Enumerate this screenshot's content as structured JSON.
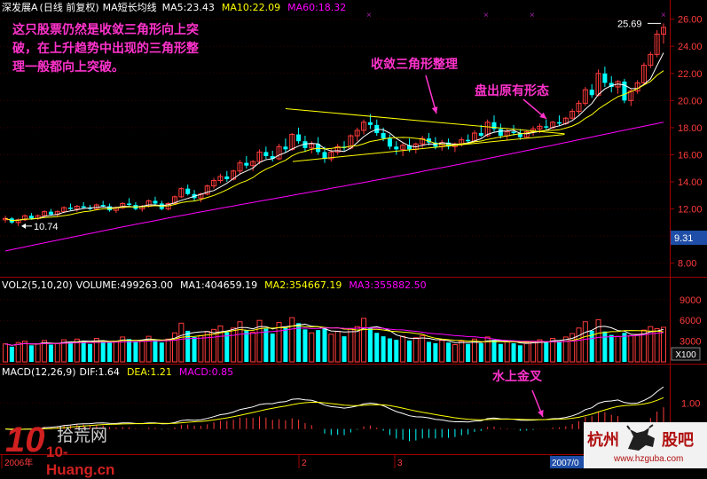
{
  "stock_name": "深发展A",
  "main_header": {
    "period": "(日线 前复权)",
    "indicator": "MA短长均线",
    "ma5": "MA5:23.43",
    "ma10": "MA10:22.09",
    "ma60": "MA60:18.32"
  },
  "vol_header": {
    "name": "VOL2(5,10,20)",
    "volume": "VOLUME:499263.00",
    "ma1": "MA1:404659.19",
    "ma2": "MA2:354667.19",
    "ma3": "MA3:355882.50"
  },
  "macd_header": {
    "name": "MACD(12,26,9)",
    "dif": "DIF:1.64",
    "dea": "DEA:1.21",
    "macd": "MACD:0.85"
  },
  "annotations": {
    "main_note": "这只股票仍然是收敛三角形向上突破，在上升趋势中出现的三角形整理一般都向上突破。",
    "triangle_label": "收敛三角形整理",
    "pattern_label": "盘出原有形态",
    "macd_label": "水上金叉"
  },
  "price_labels": {
    "high": "25.69",
    "low": "10.74",
    "current_tag": "9.31"
  },
  "price_axis": [
    "26.00",
    "24.00",
    "22.00",
    "20.00",
    "18.00",
    "16.00",
    "14.00",
    "12.00",
    "10.00",
    "8.00"
  ],
  "volume_axis": [
    "9000",
    "6000",
    "3000",
    "X100"
  ],
  "macd_axis": [
    "1.00"
  ],
  "time_axis": [
    "2006年",
    "2",
    "3",
    "4",
    "2007/0"
  ],
  "watermarks": {
    "left_logo": "10",
    "left_name": "拾荒网",
    "left_url": "10-Huang.cn",
    "right_name_a": "杭州",
    "right_name_b": "股吧",
    "right_url": "www.hzguba.com"
  },
  "colors": {
    "background": "#000000",
    "up_candle": "#ff3b3b",
    "down_candle": "#00ffff",
    "ma5": "#ffffff",
    "ma10": "#ffff00",
    "ma60": "#ff00ff",
    "axis_text": "#ff3b3b",
    "annotation": "#ff33cc"
  },
  "chart_data": {
    "type": "candlestick",
    "price_ylim": [
      7.0,
      26.5
    ],
    "candles_note": "approximate daily OHLC read from chart",
    "candles": [
      [
        11.2,
        11.5,
        11.0,
        11.3
      ],
      [
        11.3,
        11.4,
        10.9,
        11.0
      ],
      [
        11.0,
        11.3,
        10.74,
        11.2
      ],
      [
        11.2,
        11.6,
        11.1,
        11.5
      ],
      [
        11.5,
        11.7,
        11.2,
        11.3
      ],
      [
        11.3,
        11.6,
        11.2,
        11.5
      ],
      [
        11.5,
        11.9,
        11.4,
        11.8
      ],
      [
        11.8,
        12.0,
        11.5,
        11.6
      ],
      [
        11.6,
        11.9,
        11.4,
        11.8
      ],
      [
        11.8,
        12.2,
        11.7,
        12.1
      ],
      [
        12.1,
        12.4,
        11.9,
        12.0
      ],
      [
        12.0,
        12.3,
        11.8,
        12.2
      ],
      [
        12.2,
        12.5,
        12.0,
        12.1
      ],
      [
        12.1,
        12.3,
        11.9,
        12.0
      ],
      [
        12.0,
        12.4,
        11.9,
        12.3
      ],
      [
        12.3,
        12.6,
        12.1,
        12.2
      ],
      [
        12.2,
        12.4,
        11.8,
        11.9
      ],
      [
        11.9,
        12.2,
        11.7,
        12.1
      ],
      [
        12.1,
        12.5,
        12.0,
        12.4
      ],
      [
        12.4,
        12.8,
        12.2,
        12.3
      ],
      [
        12.3,
        12.5,
        11.9,
        12.0
      ],
      [
        12.0,
        12.3,
        11.8,
        12.2
      ],
      [
        12.2,
        12.7,
        12.1,
        12.6
      ],
      [
        12.6,
        12.9,
        12.3,
        12.4
      ],
      [
        12.4,
        12.6,
        11.9,
        12.0
      ],
      [
        12.0,
        12.5,
        11.9,
        12.4
      ],
      [
        12.4,
        13.0,
        12.3,
        12.9
      ],
      [
        12.9,
        13.6,
        12.8,
        13.5
      ],
      [
        13.5,
        13.8,
        13.0,
        13.1
      ],
      [
        13.1,
        13.4,
        12.6,
        12.8
      ],
      [
        12.8,
        13.2,
        12.5,
        13.1
      ],
      [
        13.1,
        13.8,
        13.0,
        13.7
      ],
      [
        13.7,
        14.3,
        13.5,
        14.1
      ],
      [
        14.1,
        14.6,
        13.9,
        14.4
      ],
      [
        14.4,
        14.8,
        14.0,
        14.2
      ],
      [
        14.2,
        14.9,
        14.1,
        14.8
      ],
      [
        14.8,
        15.6,
        14.6,
        15.4
      ],
      [
        15.4,
        15.9,
        15.0,
        15.2
      ],
      [
        15.2,
        15.6,
        14.8,
        15.5
      ],
      [
        15.5,
        16.4,
        15.3,
        16.2
      ],
      [
        16.2,
        16.6,
        15.7,
        15.9
      ],
      [
        15.9,
        16.3,
        15.5,
        15.7
      ],
      [
        15.7,
        16.8,
        15.6,
        16.6
      ],
      [
        16.6,
        17.2,
        16.2,
        16.4
      ],
      [
        16.4,
        17.6,
        16.3,
        17.5
      ],
      [
        17.5,
        18.0,
        16.8,
        17.0
      ],
      [
        17.0,
        17.4,
        16.2,
        16.5
      ],
      [
        16.5,
        17.0,
        16.1,
        16.8
      ],
      [
        16.8,
        17.3,
        16.0,
        16.2
      ],
      [
        16.2,
        16.6,
        15.4,
        15.7
      ],
      [
        15.7,
        16.4,
        15.5,
        16.2
      ],
      [
        16.2,
        16.8,
        16.0,
        16.6
      ],
      [
        16.6,
        17.0,
        16.3,
        16.5
      ],
      [
        16.5,
        17.5,
        16.4,
        17.4
      ],
      [
        17.4,
        18.0,
        17.0,
        17.8
      ],
      [
        17.8,
        18.6,
        17.5,
        18.4
      ],
      [
        18.4,
        19.0,
        17.9,
        18.2
      ],
      [
        18.2,
        18.6,
        17.4,
        17.6
      ],
      [
        17.6,
        18.0,
        17.0,
        17.2
      ],
      [
        17.2,
        17.5,
        16.4,
        16.6
      ],
      [
        16.6,
        17.0,
        16.0,
        16.4
      ],
      [
        16.4,
        16.9,
        15.9,
        16.7
      ],
      [
        16.7,
        17.2,
        16.2,
        16.4
      ],
      [
        16.4,
        16.9,
        16.1,
        16.8
      ],
      [
        16.8,
        17.4,
        16.5,
        17.2
      ],
      [
        17.2,
        17.6,
        16.7,
        16.9
      ],
      [
        16.9,
        17.3,
        16.4,
        16.6
      ],
      [
        16.6,
        17.1,
        16.3,
        16.9
      ],
      [
        16.9,
        17.2,
        16.4,
        16.6
      ],
      [
        16.6,
        16.9,
        16.2,
        16.8
      ],
      [
        16.8,
        17.3,
        16.6,
        17.1
      ],
      [
        17.1,
        17.5,
        16.8,
        17.0
      ],
      [
        17.0,
        17.8,
        16.9,
        17.6
      ],
      [
        17.6,
        18.2,
        17.3,
        17.4
      ],
      [
        17.4,
        18.6,
        17.3,
        18.4
      ],
      [
        18.4,
        18.9,
        17.7,
        17.9
      ],
      [
        17.9,
        18.3,
        17.2,
        17.4
      ],
      [
        17.4,
        17.9,
        17.1,
        17.7
      ],
      [
        17.7,
        18.2,
        17.4,
        17.6
      ],
      [
        17.6,
        17.9,
        17.1,
        17.3
      ],
      [
        17.3,
        17.8,
        17.2,
        17.7
      ],
      [
        17.7,
        18.1,
        17.4,
        17.9
      ],
      [
        17.9,
        18.3,
        17.6,
        18.1
      ],
      [
        18.1,
        18.6,
        17.8,
        18.0
      ],
      [
        18.0,
        18.5,
        17.9,
        18.4
      ],
      [
        18.4,
        18.9,
        18.1,
        18.3
      ],
      [
        18.3,
        18.8,
        18.2,
        18.7
      ],
      [
        18.7,
        19.4,
        18.6,
        19.2
      ],
      [
        19.2,
        20.0,
        19.0,
        19.8
      ],
      [
        19.8,
        21.0,
        19.6,
        20.8
      ],
      [
        20.8,
        21.2,
        20.2,
        20.4
      ],
      [
        20.4,
        22.3,
        20.3,
        22.0
      ],
      [
        22.0,
        22.5,
        21.0,
        21.3
      ],
      [
        21.3,
        21.8,
        20.6,
        21.0
      ],
      [
        21.0,
        21.5,
        20.5,
        21.4
      ],
      [
        21.4,
        21.6,
        19.8,
        20.0
      ],
      [
        20.0,
        20.9,
        19.6,
        20.7
      ],
      [
        20.7,
        21.5,
        20.5,
        21.3
      ],
      [
        21.3,
        22.8,
        21.2,
        22.6
      ],
      [
        22.6,
        23.6,
        22.4,
        23.4
      ],
      [
        23.4,
        25.2,
        23.2,
        24.9
      ],
      [
        24.9,
        25.69,
        24.2,
        25.4
      ]
    ],
    "volume_ylim": [
      0,
      10000
    ],
    "volume_unit": "X100",
    "volumes": [
      2600,
      2200,
      2800,
      3000,
      2400,
      2600,
      3100,
      2500,
      2700,
      3200,
      2900,
      3300,
      3000,
      2600,
      3400,
      3100,
      2800,
      3000,
      3600,
      3300,
      2900,
      3100,
      3700,
      3200,
      2800,
      3300,
      4200,
      5600,
      4500,
      3600,
      3800,
      4400,
      4700,
      5200,
      4300,
      4900,
      5800,
      4600,
      4300,
      6000,
      4800,
      4100,
      5700,
      4900,
      6400,
      5600,
      4700,
      4200,
      4600,
      4900,
      4000,
      4400,
      3700,
      4800,
      5100,
      6300,
      5000,
      4200,
      3700,
      3400,
      3200,
      3700,
      3100,
      3500,
      3800,
      2900,
      2700,
      3100,
      2800,
      2500,
      3000,
      2600,
      3300,
      2700,
      3600,
      3200,
      2600,
      2900,
      2700,
      2400,
      2800,
      3000,
      3200,
      2900,
      3400,
      3000,
      3600,
      4100,
      4900,
      5800,
      4500,
      6100,
      4400,
      3900,
      3700,
      4200,
      3800,
      4000,
      4600,
      5100,
      4800,
      5000
    ],
    "macd_ylim": [
      -0.9,
      1.9
    ]
  }
}
